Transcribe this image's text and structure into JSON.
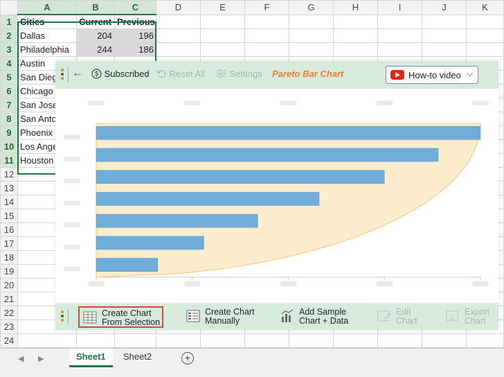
{
  "sheet": {
    "columns": [
      "A",
      "B",
      "C",
      "D",
      "E",
      "F",
      "G",
      "H",
      "I",
      "J",
      "K"
    ],
    "rows": [
      "1",
      "2",
      "3",
      "4",
      "5",
      "6",
      "7",
      "8",
      "9",
      "10",
      "11",
      "12",
      "13",
      "14",
      "15",
      "16",
      "17",
      "18",
      "19",
      "20",
      "21",
      "22",
      "23",
      "24"
    ],
    "cells": [
      [
        "Cities",
        "Current",
        "Previous"
      ],
      [
        "Dallas",
        "204",
        "196"
      ],
      [
        "Philadelphia",
        "244",
        "186"
      ],
      [
        "Austin",
        "",
        ""
      ],
      [
        "San Diego",
        "",
        ""
      ],
      [
        "Chicago",
        "",
        ""
      ],
      [
        "San Jose",
        "",
        ""
      ],
      [
        "San Antonio",
        "",
        ""
      ],
      [
        "Phoenix",
        "",
        ""
      ],
      [
        "Los Angeles",
        "",
        ""
      ],
      [
        "Houston",
        "",
        ""
      ]
    ],
    "tabs": [
      "Sheet1",
      "Sheet2"
    ],
    "active_tab": "Sheet1",
    "add_tab_glyph": "+",
    "nav_prev": "◀",
    "nav_next": "▶"
  },
  "toolbar": {
    "back_glyph": "←",
    "subscribed_label": "Subscribed",
    "reset_label": "Reset All",
    "settings_label": "Settings",
    "chart_title": "Pareto Bar Chart",
    "howto_label": "How-to video",
    "howto_chevron": "⌵",
    "icons": {
      "subscribed": "dollar-circle-icon",
      "reset": "undo-icon",
      "settings": "sliders-icon",
      "howto": "youtube-icon"
    }
  },
  "bottom_toolbar": {
    "buttons": [
      {
        "label": "Create Chart\nFrom Selection",
        "icon": "table-grid-icon",
        "disabled": false,
        "highlighted": true
      },
      {
        "label": "Create Chart\nManually",
        "icon": "list-table-icon",
        "disabled": false,
        "highlighted": false
      },
      {
        "label": "Add Sample\nChart + Data",
        "icon": "sample-chart-icon",
        "disabled": false,
        "highlighted": false
      },
      {
        "label": "Edit\nChart",
        "icon": "edit-chart-icon",
        "disabled": true,
        "highlighted": false
      },
      {
        "label": "Export\nChart",
        "icon": "export-chart-icon",
        "disabled": true,
        "highlighted": false
      }
    ]
  },
  "colors": {
    "excel_green": "#217346",
    "panel_bar": "#d7ebdd",
    "bar_fill": "#70add9",
    "curve_fill": "#fdeccd",
    "curve_stroke": "#f3c979",
    "title_orange": "#ef7d31",
    "highlight_red": "#d9473a"
  },
  "chart_data": {
    "type": "bar",
    "orientation": "horizontal",
    "values": [
      100,
      89,
      75,
      58,
      42,
      28,
      16
    ],
    "xlim": [
      0,
      100
    ],
    "categories_hidden": true,
    "cumulative_curve": true,
    "placeholder": true
  }
}
